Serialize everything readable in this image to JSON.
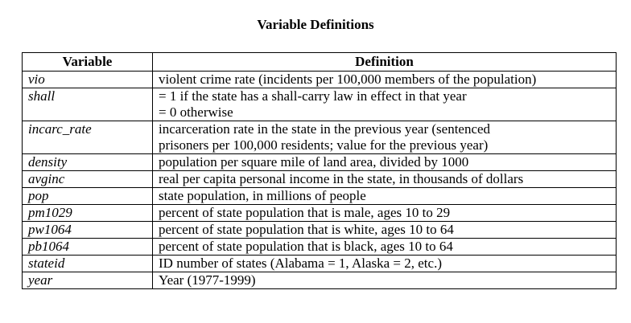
{
  "title": "Variable Definitions",
  "table": {
    "headers": [
      "Variable",
      "Definition"
    ],
    "rows": [
      {
        "variable": "vio",
        "definition": [
          "violent crime rate (incidents per 100,000 members of the population)"
        ]
      },
      {
        "variable": "shall",
        "definition": [
          "= 1 if the state has a shall-carry law in effect in that year",
          "= 0 otherwise"
        ]
      },
      {
        "variable": "incarc_rate",
        "definition": [
          "incarceration rate in the state in the previous year (sentenced",
          "prisoners per 100,000 residents; value for the previous year)"
        ]
      },
      {
        "variable": "density",
        "definition": [
          "population per square mile of land area, divided by 1000"
        ]
      },
      {
        "variable": "avginc",
        "definition": [
          "real per capita personal income in the state, in thousands of dollars"
        ]
      },
      {
        "variable": "pop",
        "definition": [
          "state population, in millions of people"
        ]
      },
      {
        "variable": "pm1029",
        "definition": [
          "percent of state population that is male, ages 10 to 29"
        ]
      },
      {
        "variable": "pw1064",
        "definition": [
          "percent of state population that is white, ages 10 to 64"
        ]
      },
      {
        "variable": "pb1064",
        "definition": [
          "percent of state population that is black, ages 10 to 64"
        ]
      },
      {
        "variable": "stateid",
        "definition": [
          "ID number of states (Alabama = 1, Alaska = 2, etc.)"
        ]
      },
      {
        "variable": "year",
        "definition": [
          "Year (1977-1999)"
        ]
      }
    ]
  }
}
